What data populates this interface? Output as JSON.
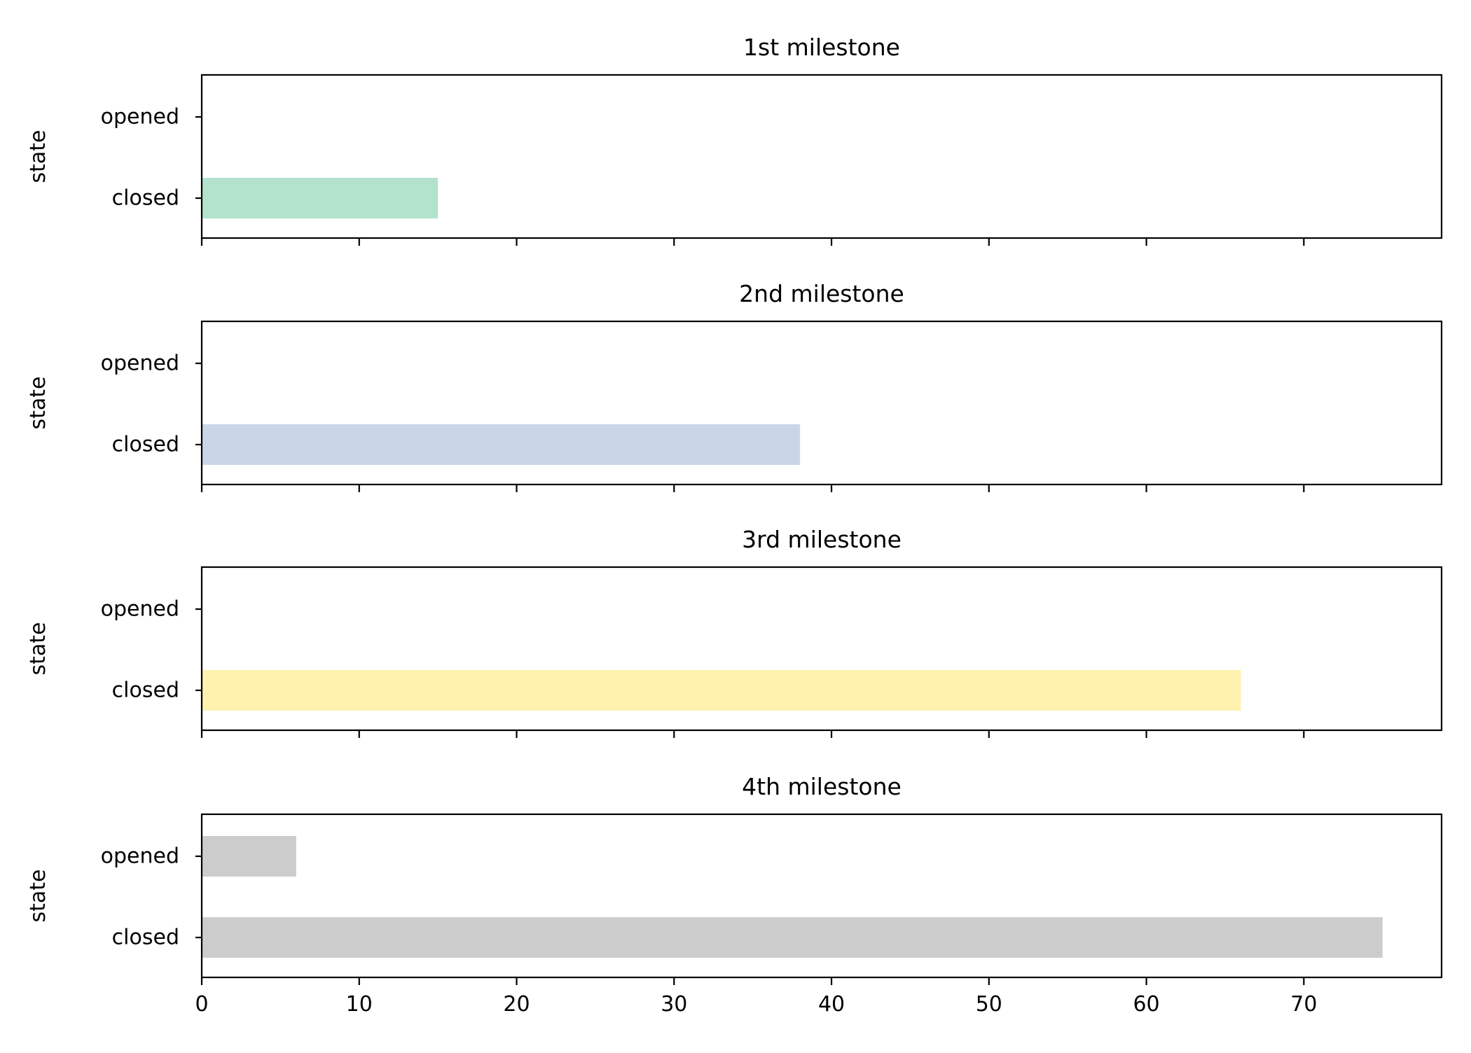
{
  "chart_data": {
    "type": "bar",
    "orientation": "horizontal",
    "shared_x": true,
    "xlim": [
      0,
      78.75
    ],
    "xticks": [
      0,
      10,
      20,
      30,
      40,
      50,
      60,
      70
    ],
    "xtick_labels": [
      "0",
      "10",
      "20",
      "30",
      "40",
      "50",
      "60",
      "70"
    ],
    "grid": false,
    "panels": [
      {
        "title": "1st milestone",
        "ylabel": "state",
        "categories": [
          "closed",
          "opened"
        ],
        "values": [
          15,
          0
        ],
        "color": "#b3e2cd"
      },
      {
        "title": "2nd milestone",
        "ylabel": "state",
        "categories": [
          "closed",
          "opened"
        ],
        "values": [
          38,
          0
        ],
        "color": "#cbd5e8"
      },
      {
        "title": "3rd milestone",
        "ylabel": "state",
        "categories": [
          "closed",
          "opened"
        ],
        "values": [
          66,
          0
        ],
        "color": "#fff2ae"
      },
      {
        "title": "4th milestone",
        "ylabel": "state",
        "categories": [
          "closed",
          "opened"
        ],
        "values": [
          75,
          6
        ],
        "color": "#cccccc"
      }
    ]
  }
}
